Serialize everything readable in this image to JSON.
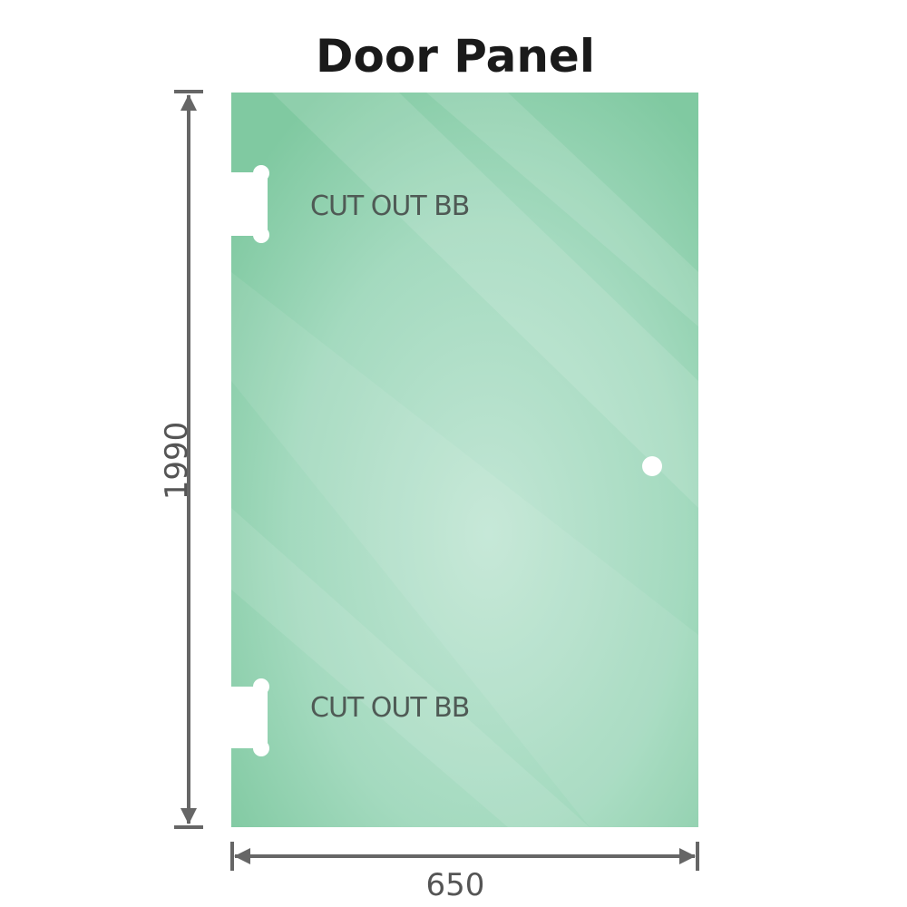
{
  "title": "Door Panel",
  "dimensions": {
    "height": "1990",
    "width": "650"
  },
  "cutouts": [
    {
      "label": "CUT OUT BB"
    },
    {
      "label": "CUT OUT BB"
    }
  ],
  "colors": {
    "glass": "#86cda6",
    "glass_light": "#c2e6d5",
    "dimension_line": "#666666"
  },
  "features": {
    "handle_hole": "circle",
    "hinge_cutouts": 2
  }
}
